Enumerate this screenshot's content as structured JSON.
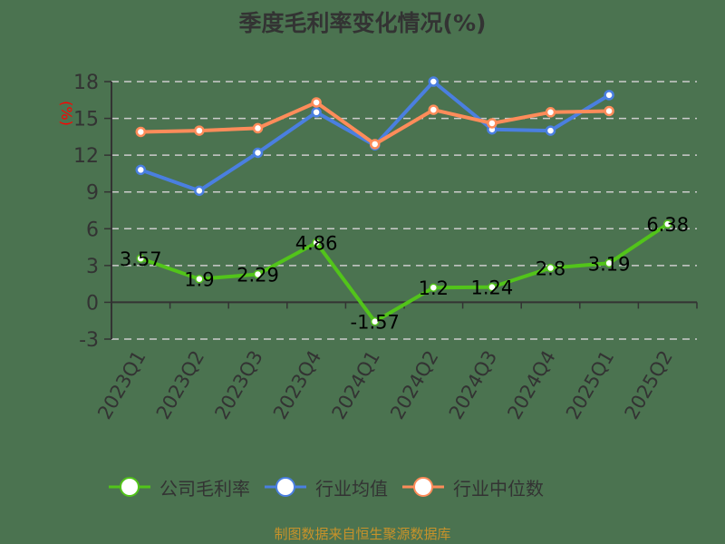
{
  "title": "季度毛利率变化情况(%)",
  "footer": "制图数据来自恒生聚源数据库",
  "colors": {
    "background": "#4b7350",
    "company": "#52c41a",
    "industry_avg": "#4a7fe0",
    "industry_median": "#ff8c5a",
    "grid": "#cccccc",
    "axis": "#333333",
    "unit_label": "#ff0000",
    "footer": "#c8922a"
  },
  "legend": [
    {
      "name": "公司毛利率",
      "color": "#52c41a"
    },
    {
      "name": "行业均值",
      "color": "#4a7fe0"
    },
    {
      "name": "行业中位数",
      "color": "#ff8c5a"
    }
  ],
  "chart_data": {
    "type": "line",
    "title": "季度毛利率变化情况(%)",
    "xlabel": "",
    "ylabel": "(%)",
    "ylim": [
      -3,
      18
    ],
    "yticks": [
      -3,
      0,
      3,
      6,
      9,
      12,
      15,
      18
    ],
    "grid": true,
    "legend_position": "bottom",
    "categories": [
      "2023Q1",
      "2023Q2",
      "2023Q3",
      "2023Q4",
      "2024Q1",
      "2024Q2",
      "2024Q3",
      "2024Q4",
      "2025Q1",
      "2025Q2"
    ],
    "series": [
      {
        "name": "公司毛利率",
        "color": "#52c41a",
        "show_labels": true,
        "values": [
          3.57,
          1.9,
          2.29,
          4.86,
          -1.57,
          1.2,
          1.24,
          2.8,
          3.19,
          6.38
        ]
      },
      {
        "name": "行业均值",
        "color": "#4a7fe0",
        "show_labels": false,
        "values": [
          10.8,
          9.1,
          12.2,
          15.5,
          12.8,
          18.0,
          14.1,
          14.0,
          16.9,
          null
        ]
      },
      {
        "name": "行业中位数",
        "color": "#ff8c5a",
        "show_labels": false,
        "values": [
          13.9,
          14.0,
          14.2,
          16.3,
          12.9,
          15.7,
          14.6,
          15.5,
          15.6,
          null
        ]
      }
    ]
  }
}
